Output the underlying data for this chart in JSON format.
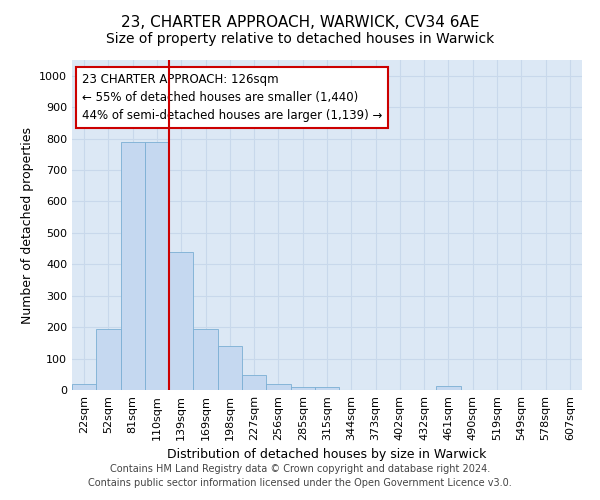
{
  "title": "23, CHARTER APPROACH, WARWICK, CV34 6AE",
  "subtitle": "Size of property relative to detached houses in Warwick",
  "xlabel": "Distribution of detached houses by size in Warwick",
  "ylabel": "Number of detached properties",
  "footer_line1": "Contains HM Land Registry data © Crown copyright and database right 2024.",
  "footer_line2": "Contains public sector information licensed under the Open Government Licence v3.0.",
  "categories": [
    "22sqm",
    "52sqm",
    "81sqm",
    "110sqm",
    "139sqm",
    "169sqm",
    "198sqm",
    "227sqm",
    "256sqm",
    "285sqm",
    "315sqm",
    "344sqm",
    "373sqm",
    "402sqm",
    "432sqm",
    "461sqm",
    "490sqm",
    "519sqm",
    "549sqm",
    "578sqm",
    "607sqm"
  ],
  "values": [
    18,
    195,
    788,
    788,
    440,
    195,
    140,
    48,
    18,
    10,
    10,
    0,
    0,
    0,
    0,
    12,
    0,
    0,
    0,
    0,
    0
  ],
  "bar_color": "#c5d8f0",
  "bar_edge_color": "#7bafd4",
  "vline_color": "#cc0000",
  "annotation_text": "23 CHARTER APPROACH: 126sqm\n← 55% of detached houses are smaller (1,440)\n44% of semi-detached houses are larger (1,139) →",
  "annotation_box_color": "#cc0000",
  "annotation_fill_color": "#ffffff",
  "ylim": [
    0,
    1050
  ],
  "yticks": [
    0,
    100,
    200,
    300,
    400,
    500,
    600,
    700,
    800,
    900,
    1000
  ],
  "grid_color": "#c8d8eb",
  "bg_color": "#dce8f5",
  "fig_bg_color": "#ffffff",
  "title_fontsize": 11,
  "subtitle_fontsize": 10,
  "axis_label_fontsize": 9,
  "tick_fontsize": 8,
  "footer_fontsize": 7,
  "annotation_fontsize": 8.5
}
